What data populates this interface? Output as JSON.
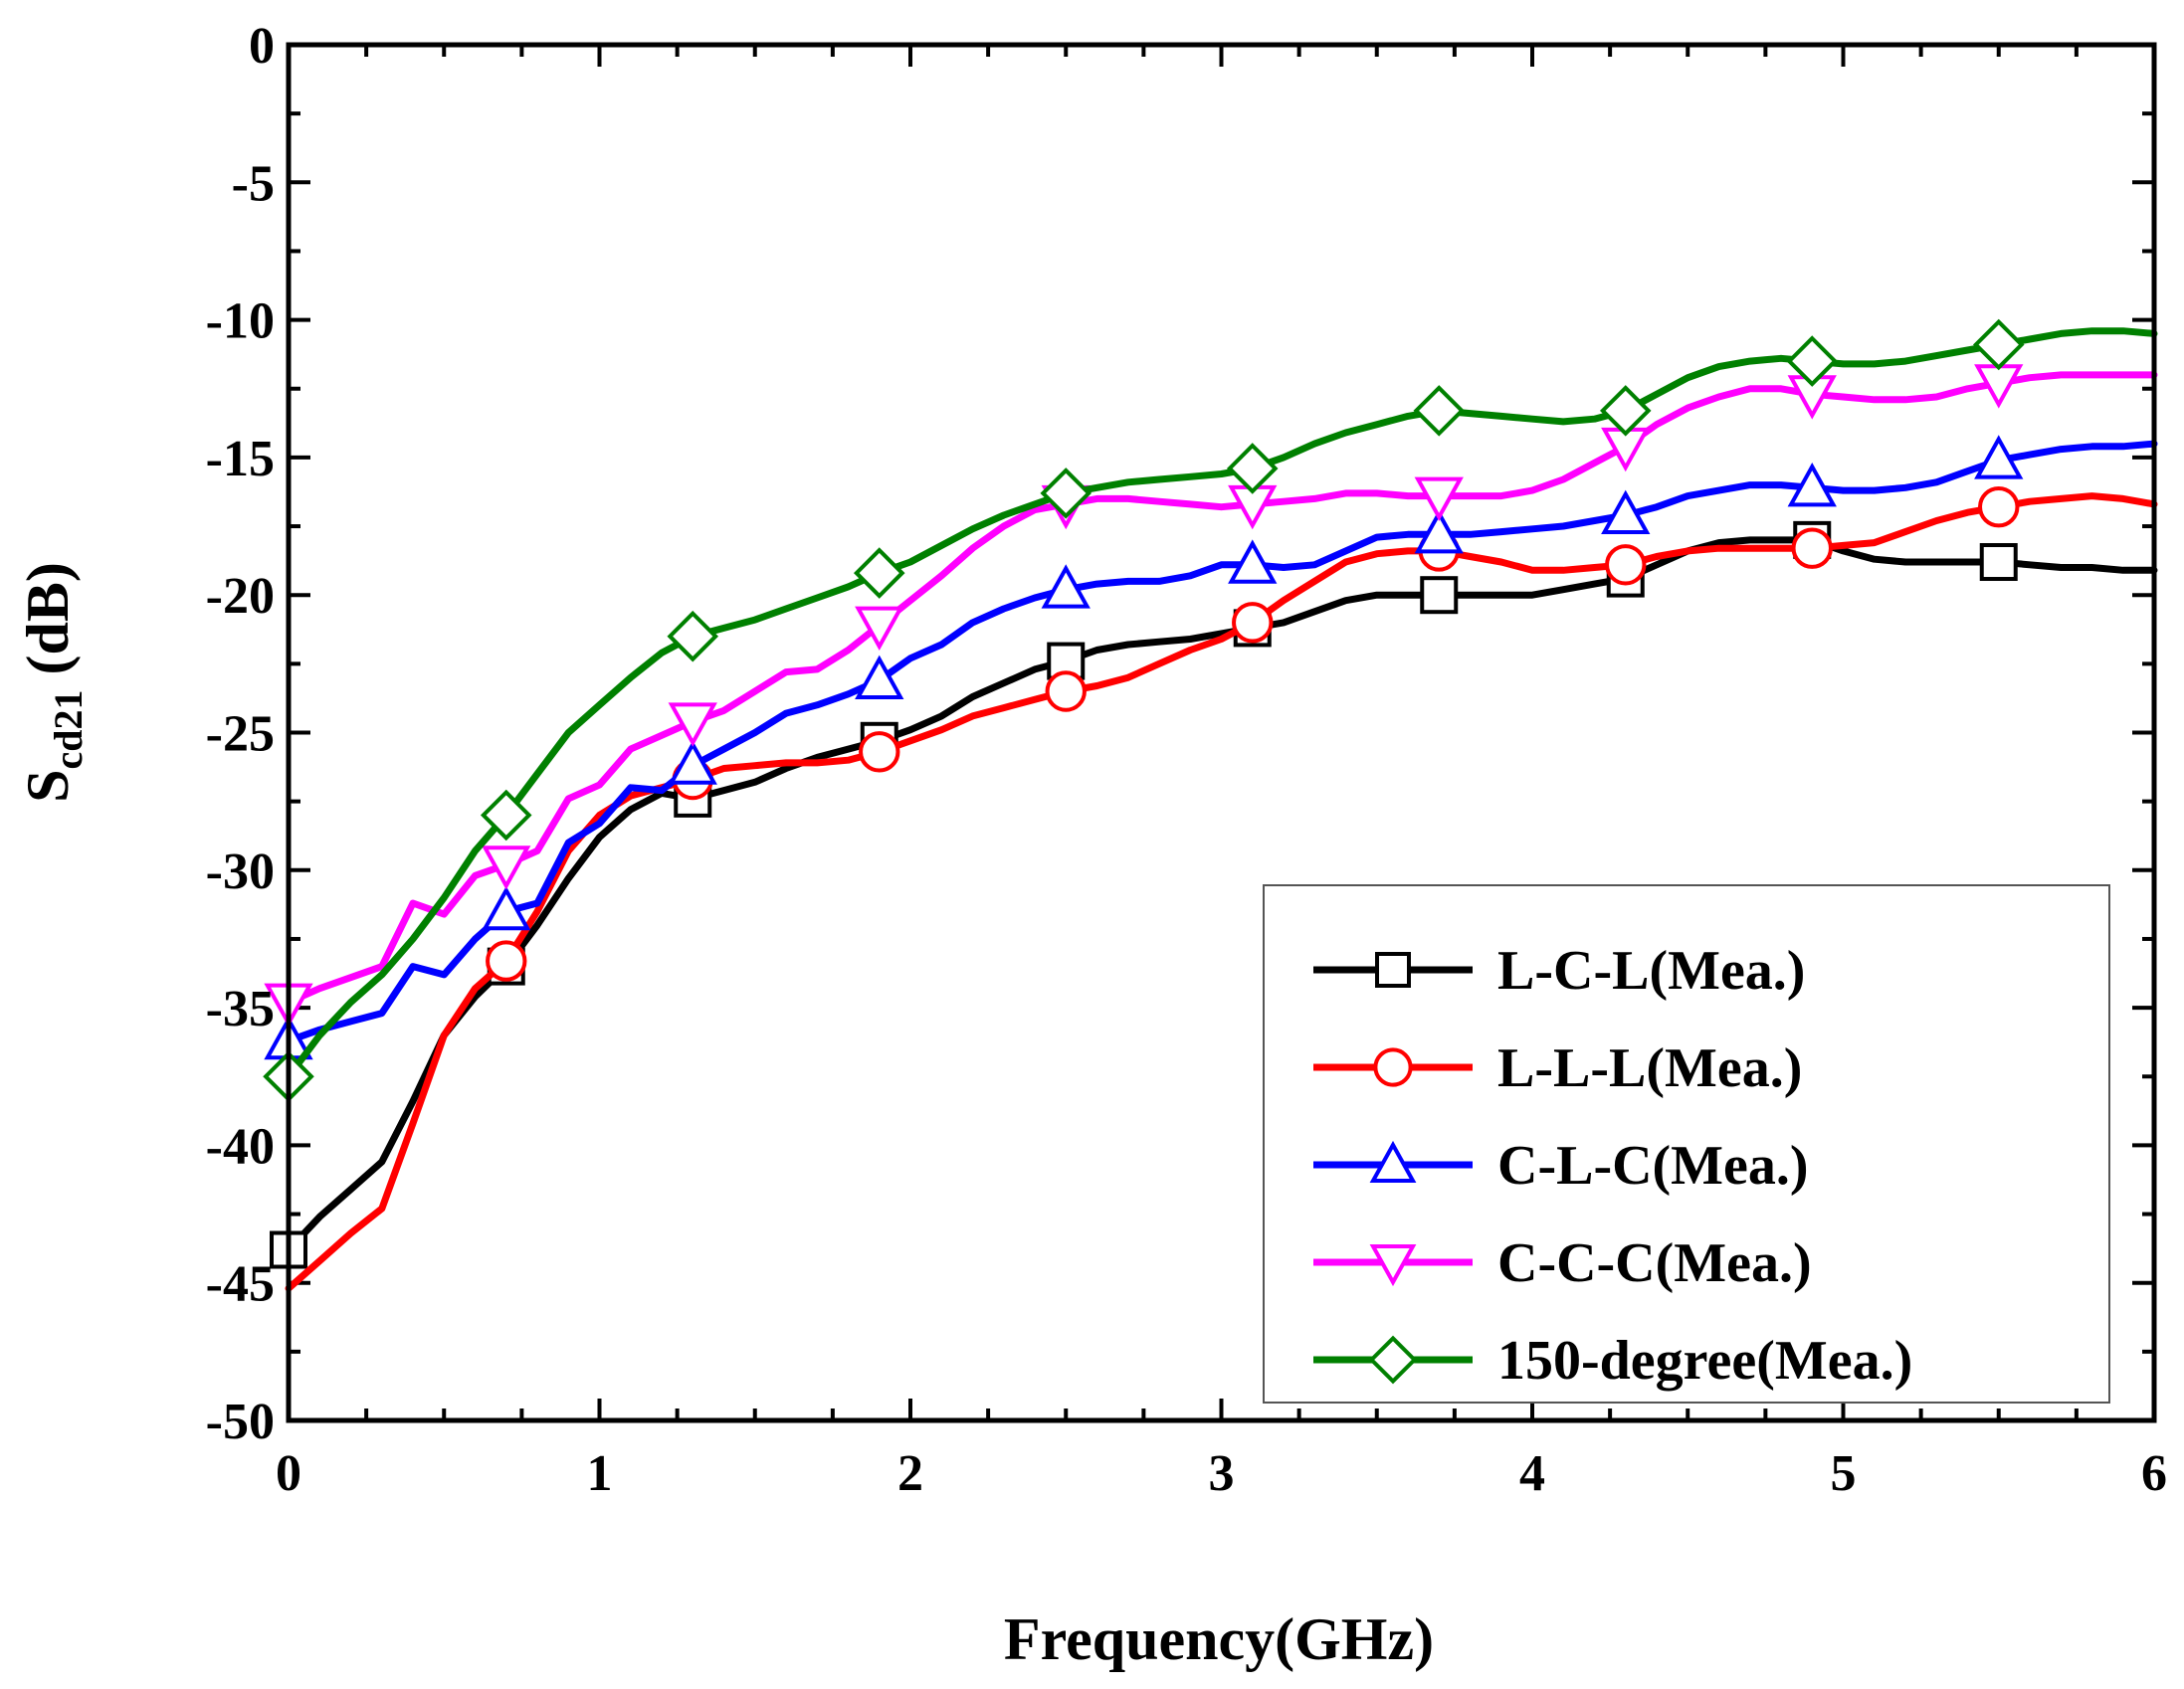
{
  "chart_data": {
    "type": "line",
    "title": "",
    "xlabel": "Frequency(GHz)",
    "ylabel_main": "S",
    "ylabel_sub": "cd21",
    "ylabel_unit": " (dB)",
    "xlim": [
      0,
      6
    ],
    "ylim": [
      -50,
      0
    ],
    "xticks": [
      "0",
      "1",
      "2",
      "3",
      "4",
      "5",
      "6"
    ],
    "yticks": [
      "0",
      "-5",
      "-10",
      "-15",
      "-20",
      "-25",
      "-30",
      "-35",
      "-40",
      "-45",
      "-50"
    ],
    "grid": false,
    "legend_position": "bottom-right",
    "series": [
      {
        "name": "L-C-L(Mea.)",
        "color": "#000000",
        "marker": "square",
        "x": [
          0.0,
          0.1,
          0.2,
          0.3,
          0.4,
          0.5,
          0.6,
          0.7,
          0.8,
          0.9,
          1.0,
          1.1,
          1.2,
          1.3,
          1.4,
          1.5,
          1.6,
          1.7,
          1.8,
          1.9,
          2.0,
          2.1,
          2.2,
          2.3,
          2.4,
          2.5,
          2.6,
          2.7,
          2.8,
          2.9,
          3.0,
          3.1,
          3.2,
          3.3,
          3.4,
          3.5,
          3.6,
          3.7,
          3.8,
          3.9,
          4.0,
          4.1,
          4.2,
          4.3,
          4.4,
          4.5,
          4.6,
          4.7,
          4.8,
          4.9,
          5.0,
          5.1,
          5.2,
          5.3,
          5.4,
          5.5,
          5.6,
          5.7,
          5.8,
          5.9,
          6.0
        ],
        "y": [
          -43.8,
          -42.6,
          -41.6,
          -40.6,
          -38.4,
          -36.0,
          -34.6,
          -33.5,
          -32.0,
          -30.3,
          -28.8,
          -27.8,
          -27.2,
          -27.4,
          -27.1,
          -26.8,
          -26.3,
          -25.9,
          -25.6,
          -25.3,
          -24.9,
          -24.4,
          -23.7,
          -23.2,
          -22.7,
          -22.4,
          -22.0,
          -21.8,
          -21.7,
          -21.6,
          -21.4,
          -21.2,
          -21.0,
          -20.6,
          -20.2,
          -20.0,
          -20.0,
          -20.0,
          -20.0,
          -20.0,
          -20.0,
          -19.8,
          -19.6,
          -19.4,
          -18.9,
          -18.4,
          -18.1,
          -18.0,
          -18.0,
          -18.0,
          -18.4,
          -18.7,
          -18.8,
          -18.8,
          -18.8,
          -18.8,
          -18.9,
          -19.0,
          -19.0,
          -19.1,
          -19.1
        ],
        "marker_x": [
          0.0,
          0.7,
          1.3,
          1.9,
          2.5,
          3.1,
          3.7,
          4.3,
          4.9,
          5.5
        ]
      },
      {
        "name": "L-L-L(Mea.)",
        "color": "#ff0000",
        "marker": "circle",
        "x": [
          0.0,
          0.1,
          0.2,
          0.3,
          0.4,
          0.5,
          0.6,
          0.7,
          0.8,
          0.9,
          1.0,
          1.1,
          1.2,
          1.3,
          1.4,
          1.5,
          1.6,
          1.7,
          1.8,
          1.9,
          2.0,
          2.1,
          2.2,
          2.3,
          2.4,
          2.5,
          2.6,
          2.7,
          2.8,
          2.9,
          3.0,
          3.1,
          3.2,
          3.3,
          3.4,
          3.5,
          3.6,
          3.7,
          3.8,
          3.9,
          4.0,
          4.1,
          4.2,
          4.3,
          4.4,
          4.5,
          4.6,
          4.7,
          4.8,
          4.9,
          5.0,
          5.1,
          5.2,
          5.3,
          5.4,
          5.5,
          5.6,
          5.7,
          5.8,
          5.9,
          6.0
        ],
        "y": [
          -45.2,
          -44.2,
          -43.2,
          -42.3,
          -39.2,
          -36.0,
          -34.3,
          -33.3,
          -31.5,
          -29.3,
          -28.0,
          -27.3,
          -27.0,
          -26.7,
          -26.3,
          -26.2,
          -26.1,
          -26.1,
          -26.0,
          -25.7,
          -25.3,
          -24.9,
          -24.4,
          -24.1,
          -23.8,
          -23.5,
          -23.3,
          -23.0,
          -22.5,
          -22.0,
          -21.6,
          -21.0,
          -20.2,
          -19.5,
          -18.8,
          -18.5,
          -18.4,
          -18.4,
          -18.6,
          -18.8,
          -19.1,
          -19.1,
          -19.0,
          -18.9,
          -18.6,
          -18.4,
          -18.3,
          -18.3,
          -18.3,
          -18.3,
          -18.2,
          -18.1,
          -17.7,
          -17.3,
          -17.0,
          -16.8,
          -16.6,
          -16.5,
          -16.4,
          -16.5,
          -16.7
        ],
        "marker_x": [
          0.7,
          1.3,
          1.9,
          2.5,
          3.1,
          3.7,
          4.3,
          4.9,
          5.5
        ]
      },
      {
        "name": "C-L-C(Mea.)",
        "color": "#0000ff",
        "marker": "triangle-up",
        "x": [
          0.0,
          0.1,
          0.2,
          0.3,
          0.4,
          0.5,
          0.6,
          0.7,
          0.8,
          0.9,
          1.0,
          1.1,
          1.2,
          1.3,
          1.4,
          1.5,
          1.6,
          1.7,
          1.8,
          1.9,
          2.0,
          2.1,
          2.2,
          2.3,
          2.4,
          2.5,
          2.6,
          2.7,
          2.8,
          2.9,
          3.0,
          3.1,
          3.2,
          3.3,
          3.4,
          3.5,
          3.6,
          3.7,
          3.8,
          3.9,
          4.0,
          4.1,
          4.2,
          4.3,
          4.4,
          4.5,
          4.6,
          4.7,
          4.8,
          4.9,
          5.0,
          5.1,
          5.2,
          5.3,
          5.4,
          5.5,
          5.6,
          5.7,
          5.8,
          5.9,
          6.0
        ],
        "y": [
          -36.2,
          -35.8,
          -35.5,
          -35.2,
          -33.5,
          -33.8,
          -32.5,
          -31.5,
          -31.2,
          -29.0,
          -28.3,
          -27.0,
          -27.1,
          -26.2,
          -25.6,
          -25.0,
          -24.3,
          -24.0,
          -23.6,
          -23.1,
          -22.3,
          -21.8,
          -21.0,
          -20.5,
          -20.1,
          -19.8,
          -19.6,
          -19.5,
          -19.5,
          -19.3,
          -18.9,
          -18.9,
          -19.0,
          -18.9,
          -18.4,
          -17.9,
          -17.8,
          -17.8,
          -17.8,
          -17.7,
          -17.6,
          -17.5,
          -17.3,
          -17.1,
          -16.8,
          -16.4,
          -16.2,
          -16.0,
          -16.0,
          -16.1,
          -16.2,
          -16.2,
          -16.1,
          -15.9,
          -15.5,
          -15.1,
          -14.9,
          -14.7,
          -14.6,
          -14.6,
          -14.5
        ],
        "marker_x": [
          0.0,
          0.7,
          1.3,
          1.9,
          2.5,
          3.1,
          3.7,
          4.3,
          4.9,
          5.5
        ]
      },
      {
        "name": "C-C-C(Mea.)",
        "color": "#ff00ff",
        "marker": "triangle-down",
        "x": [
          0.0,
          0.1,
          0.2,
          0.3,
          0.4,
          0.5,
          0.6,
          0.7,
          0.8,
          0.9,
          1.0,
          1.1,
          1.2,
          1.3,
          1.4,
          1.5,
          1.6,
          1.7,
          1.8,
          1.9,
          2.0,
          2.1,
          2.2,
          2.3,
          2.4,
          2.5,
          2.6,
          2.7,
          2.8,
          2.9,
          3.0,
          3.1,
          3.2,
          3.3,
          3.4,
          3.5,
          3.6,
          3.7,
          3.8,
          3.9,
          4.0,
          4.1,
          4.2,
          4.3,
          4.4,
          4.5,
          4.6,
          4.7,
          4.8,
          4.9,
          5.0,
          5.1,
          5.2,
          5.3,
          5.4,
          5.5,
          5.6,
          5.7,
          5.8,
          5.9,
          6.0
        ],
        "y": [
          -34.8,
          -34.3,
          -33.9,
          -33.5,
          -31.2,
          -31.6,
          -30.2,
          -29.8,
          -29.3,
          -27.4,
          -26.9,
          -25.6,
          -25.1,
          -24.6,
          -24.2,
          -23.5,
          -22.8,
          -22.7,
          -22.0,
          -21.1,
          -20.2,
          -19.3,
          -18.3,
          -17.5,
          -16.9,
          -16.7,
          -16.5,
          -16.5,
          -16.6,
          -16.7,
          -16.8,
          -16.7,
          -16.6,
          -16.5,
          -16.3,
          -16.3,
          -16.4,
          -16.4,
          -16.4,
          -16.4,
          -16.2,
          -15.8,
          -15.2,
          -14.6,
          -13.8,
          -13.2,
          -12.8,
          -12.5,
          -12.5,
          -12.7,
          -12.8,
          -12.9,
          -12.9,
          -12.8,
          -12.5,
          -12.3,
          -12.1,
          -12.0,
          -12.0,
          -12.0,
          -12.0
        ],
        "marker_x": [
          0.0,
          0.7,
          1.3,
          1.9,
          2.5,
          3.1,
          3.7,
          4.3,
          4.9,
          5.5
        ]
      },
      {
        "name": "150-degree(Mea.)",
        "color": "#008000",
        "marker": "diamond",
        "x": [
          0.0,
          0.1,
          0.2,
          0.3,
          0.4,
          0.5,
          0.6,
          0.7,
          0.8,
          0.9,
          1.0,
          1.1,
          1.2,
          1.3,
          1.4,
          1.5,
          1.6,
          1.7,
          1.8,
          1.9,
          2.0,
          2.1,
          2.2,
          2.3,
          2.4,
          2.5,
          2.6,
          2.7,
          2.8,
          2.9,
          3.0,
          3.1,
          3.2,
          3.3,
          3.4,
          3.5,
          3.6,
          3.7,
          3.8,
          3.9,
          4.0,
          4.1,
          4.2,
          4.3,
          4.4,
          4.5,
          4.6,
          4.7,
          4.8,
          4.9,
          5.0,
          5.1,
          5.2,
          5.3,
          5.4,
          5.5,
          5.6,
          5.7,
          5.8,
          5.9,
          6.0
        ],
        "y": [
          -37.5,
          -36.0,
          -34.8,
          -33.8,
          -32.5,
          -31.0,
          -29.3,
          -28.0,
          -26.5,
          -25.0,
          -24.0,
          -23.0,
          -22.1,
          -21.5,
          -21.2,
          -20.9,
          -20.5,
          -20.1,
          -19.7,
          -19.2,
          -18.8,
          -18.2,
          -17.6,
          -17.1,
          -16.7,
          -16.3,
          -16.1,
          -15.9,
          -15.8,
          -15.7,
          -15.6,
          -15.4,
          -15.0,
          -14.5,
          -14.1,
          -13.8,
          -13.5,
          -13.3,
          -13.4,
          -13.5,
          -13.6,
          -13.7,
          -13.6,
          -13.3,
          -12.7,
          -12.1,
          -11.7,
          -11.5,
          -11.4,
          -11.5,
          -11.6,
          -11.6,
          -11.5,
          -11.3,
          -11.1,
          -10.9,
          -10.7,
          -10.5,
          -10.4,
          -10.4,
          -10.5
        ],
        "marker_x": [
          0.0,
          0.7,
          1.3,
          1.9,
          2.5,
          3.1,
          3.7,
          4.3,
          4.9,
          5.5
        ]
      }
    ]
  }
}
